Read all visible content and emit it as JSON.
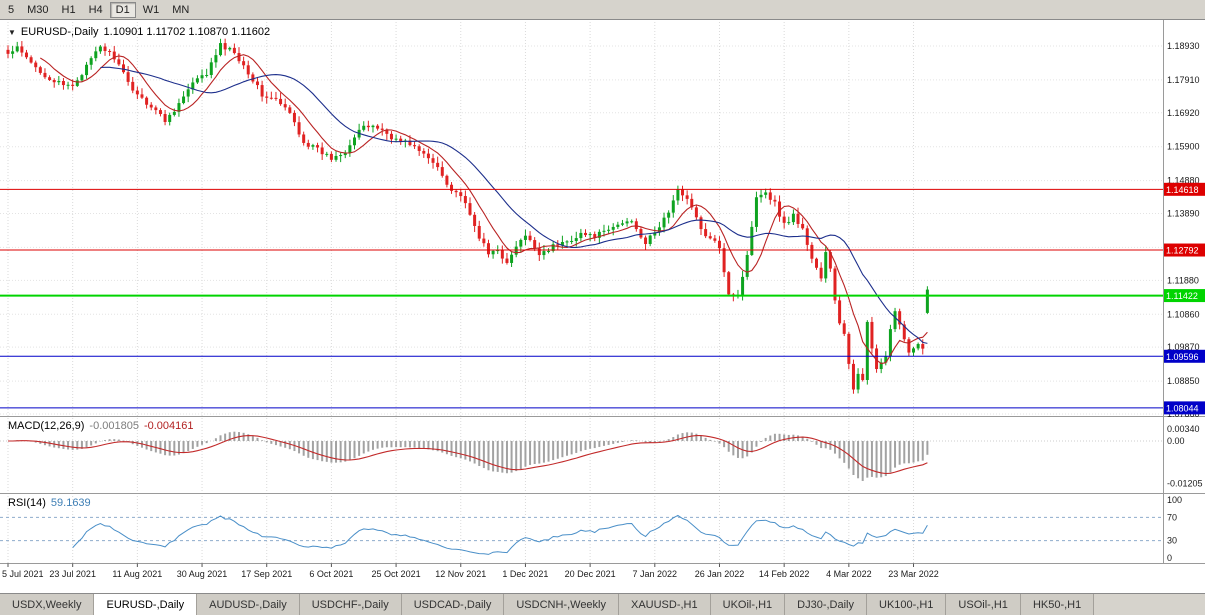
{
  "toolbar": {
    "periods": [
      {
        "label": "5",
        "active": false
      },
      {
        "label": "M30",
        "active": false
      },
      {
        "label": "H1",
        "active": false
      },
      {
        "label": "H4",
        "active": false
      },
      {
        "label": "D1",
        "active": true
      },
      {
        "label": "W1",
        "active": false
      },
      {
        "label": "MN",
        "active": false
      }
    ]
  },
  "header": {
    "dropdown_icon": "▼",
    "symbol": "EURUSD-,Daily",
    "ohlc": "1.10901 1.11702 1.10870 1.11602"
  },
  "indicators": {
    "macd": {
      "name": "MACD(12,26,9)",
      "value_main": "-0.001805",
      "value_signal": "-0.004161"
    },
    "rsi": {
      "name": "RSI(14)",
      "value": "59.1639"
    }
  },
  "tabs": [
    {
      "label": "USDX,Weekly",
      "active": false
    },
    {
      "label": "EURUSD-,Daily",
      "active": true
    },
    {
      "label": "AUDUSD-,Daily",
      "active": false
    },
    {
      "label": "USDCHF-,Daily",
      "active": false
    },
    {
      "label": "USDCAD-,Daily",
      "active": false
    },
    {
      "label": "USDCNH-,Weekly",
      "active": false
    },
    {
      "label": "XAUUSD-,H1",
      "active": false
    },
    {
      "label": "UKOil-,H1",
      "active": false
    },
    {
      "label": "DJ30-,Daily",
      "active": false
    },
    {
      "label": "UK100-,H1",
      "active": false
    },
    {
      "label": "USOil-,H1",
      "active": false
    },
    {
      "label": "HK50-,H1",
      "active": false
    }
  ],
  "chart_data": [
    {
      "type": "candlestick",
      "title": "EURUSD-,Daily",
      "ohlc_last": {
        "open": 1.10901,
        "high": 1.11702,
        "low": 1.1087,
        "close": 1.11602
      },
      "n_bars": 200,
      "x_label_every": 14,
      "x_labels": [
        "5 Jul 2021",
        "23 Jul 2021",
        "11 Aug 2021",
        "30 Aug 2021",
        "17 Sep 2021",
        "6 Oct 2021",
        "25 Oct 2021",
        "12 Nov 2021",
        "1 Dec 2021",
        "20 Dec 2021",
        "7 Jan 2022",
        "26 Jan 2022",
        "14 Feb 2022",
        "4 Mar 2022",
        "23 Mar 2022"
      ],
      "ylim": [
        1.0792,
        1.1941
      ],
      "y_ticks": [
        {
          "v": 1.1893,
          "label": "1.18930"
        },
        {
          "v": 1.1791,
          "label": "1.17910"
        },
        {
          "v": 1.1692,
          "label": "1.16920"
        },
        {
          "v": 1.159,
          "label": "1.15900"
        },
        {
          "v": 1.1488,
          "label": "1.14880"
        },
        {
          "v": 1.1389,
          "label": "1.13890"
        },
        {
          "v": 1.1287,
          "label": "1.12870"
        },
        {
          "v": 1.1188,
          "label": "1.11880"
        },
        {
          "v": 1.1086,
          "label": "1.10860"
        },
        {
          "v": 1.0987,
          "label": "1.09870"
        },
        {
          "v": 1.0885,
          "label": "1.08850"
        },
        {
          "v": 1.0786,
          "label": "1.07860"
        }
      ],
      "close_anchors": [
        [
          0,
          1.1868
        ],
        [
          2,
          1.1885
        ],
        [
          5,
          1.184
        ],
        [
          9,
          1.1795
        ],
        [
          12,
          1.1772
        ],
        [
          14,
          1.1775
        ],
        [
          17,
          1.183
        ],
        [
          20,
          1.1892
        ],
        [
          23,
          1.186
        ],
        [
          26,
          1.178
        ],
        [
          29,
          1.1735
        ],
        [
          32,
          1.17
        ],
        [
          34,
          1.1668
        ],
        [
          37,
          1.172
        ],
        [
          40,
          1.178
        ],
        [
          43,
          1.181
        ],
        [
          46,
          1.1895
        ],
        [
          49,
          1.1875
        ],
        [
          52,
          1.1815
        ],
        [
          55,
          1.1745
        ],
        [
          58,
          1.173
        ],
        [
          61,
          1.169
        ],
        [
          64,
          1.1605
        ],
        [
          67,
          1.158
        ],
        [
          70,
          1.1555
        ],
        [
          73,
          1.158
        ],
        [
          76,
          1.164
        ],
        [
          79,
          1.1655
        ],
        [
          82,
          1.163
        ],
        [
          84,
          1.161
        ],
        [
          87,
          1.16
        ],
        [
          90,
          1.1565
        ],
        [
          93,
          1.153
        ],
        [
          96,
          1.146
        ],
        [
          98,
          1.1445
        ],
        [
          100,
          1.138
        ],
        [
          102,
          1.132
        ],
        [
          104,
          1.1265
        ],
        [
          106,
          1.1285
        ],
        [
          108,
          1.1235
        ],
        [
          110,
          1.129
        ],
        [
          112,
          1.132
        ],
        [
          115,
          1.127
        ],
        [
          118,
          1.129
        ],
        [
          121,
          1.1305
        ],
        [
          124,
          1.133
        ],
        [
          126,
          1.132
        ],
        [
          129,
          1.133
        ],
        [
          132,
          1.1355
        ],
        [
          135,
          1.137
        ],
        [
          138,
          1.13
        ],
        [
          140,
          1.133
        ],
        [
          143,
          1.1395
        ],
        [
          145,
          1.1455
        ],
        [
          147,
          1.144
        ],
        [
          150,
          1.134
        ],
        [
          152,
          1.131
        ],
        [
          154,
          1.129
        ],
        [
          156,
          1.115
        ],
        [
          158,
          1.1145
        ],
        [
          160,
          1.126
        ],
        [
          162,
          1.1445
        ],
        [
          164,
          1.1455
        ],
        [
          166,
          1.142
        ],
        [
          168,
          1.1355
        ],
        [
          170,
          1.1385
        ],
        [
          172,
          1.134
        ],
        [
          174,
          1.1255
        ],
        [
          176,
          1.1195
        ],
        [
          177,
          1.127
        ],
        [
          178,
          1.122
        ],
        [
          179,
          1.1125
        ],
        [
          180,
          1.106
        ],
        [
          181,
          1.103
        ],
        [
          182,
          1.0935
        ],
        [
          183,
          1.0855
        ],
        [
          184,
          1.09
        ],
        [
          185,
          1.089
        ],
        [
          186,
          1.107
        ],
        [
          187,
          1.099
        ],
        [
          188,
          1.0915
        ],
        [
          189,
          1.094
        ],
        [
          190,
          1.0958
        ],
        [
          191,
          1.1035
        ],
        [
          192,
          1.109
        ],
        [
          193,
          1.105
        ],
        [
          194,
          1.1005
        ],
        [
          195,
          1.0978
        ],
        [
          196,
          1.0985
        ],
        [
          197,
          1.0998
        ],
        [
          198,
          1.099
        ],
        [
          199,
          1.116
        ]
      ],
      "levels": [
        {
          "price": 1.14618,
          "label": "1.14618",
          "color": "#dd0000",
          "width": 1
        },
        {
          "price": 1.12792,
          "label": "1.12792",
          "color": "#dd0000",
          "width": 1
        },
        {
          "price": 1.11422,
          "label": "1.11422",
          "color": "#00d400",
          "width": 2
        },
        {
          "price": 1.09596,
          "label": "1.09596",
          "color": "#0000c8",
          "width": 1
        },
        {
          "price": 1.08044,
          "label": "1.08044",
          "color": "#0000c8",
          "width": 1
        }
      ],
      "moving_averages": [
        {
          "period": 8,
          "color": "#b92323"
        },
        {
          "period": 21,
          "color": "#1d2f8c"
        }
      ],
      "up_color": "#0ea320",
      "down_color": "#e02222"
    },
    {
      "type": "macd",
      "name": "MACD(12,26,9)",
      "fast": 12,
      "slow": 26,
      "signal": 9,
      "display_values": [
        -0.001805,
        -0.004161
      ],
      "y_ticks": [
        {
          "v": 0.0034,
          "label": "0.00340"
        },
        {
          "v": 0,
          "label": "0.00"
        },
        {
          "v": -0.01205,
          "label": "-0.01205"
        }
      ],
      "hist_color": "#a2a2a2",
      "signal_color": "#c22a2a"
    },
    {
      "type": "rsi",
      "name": "RSI(14)",
      "period": 14,
      "last_value": 59.1639,
      "levels": [
        70,
        30
      ],
      "ylim": [
        0,
        100
      ],
      "y_ticks": [
        {
          "v": 100,
          "label": "100"
        },
        {
          "v": 70,
          "label": "70"
        },
        {
          "v": 30,
          "label": "30"
        },
        {
          "v": 0,
          "label": "0"
        }
      ],
      "line_color": "#4a8fc8",
      "level_color": "#8faccc"
    }
  ]
}
